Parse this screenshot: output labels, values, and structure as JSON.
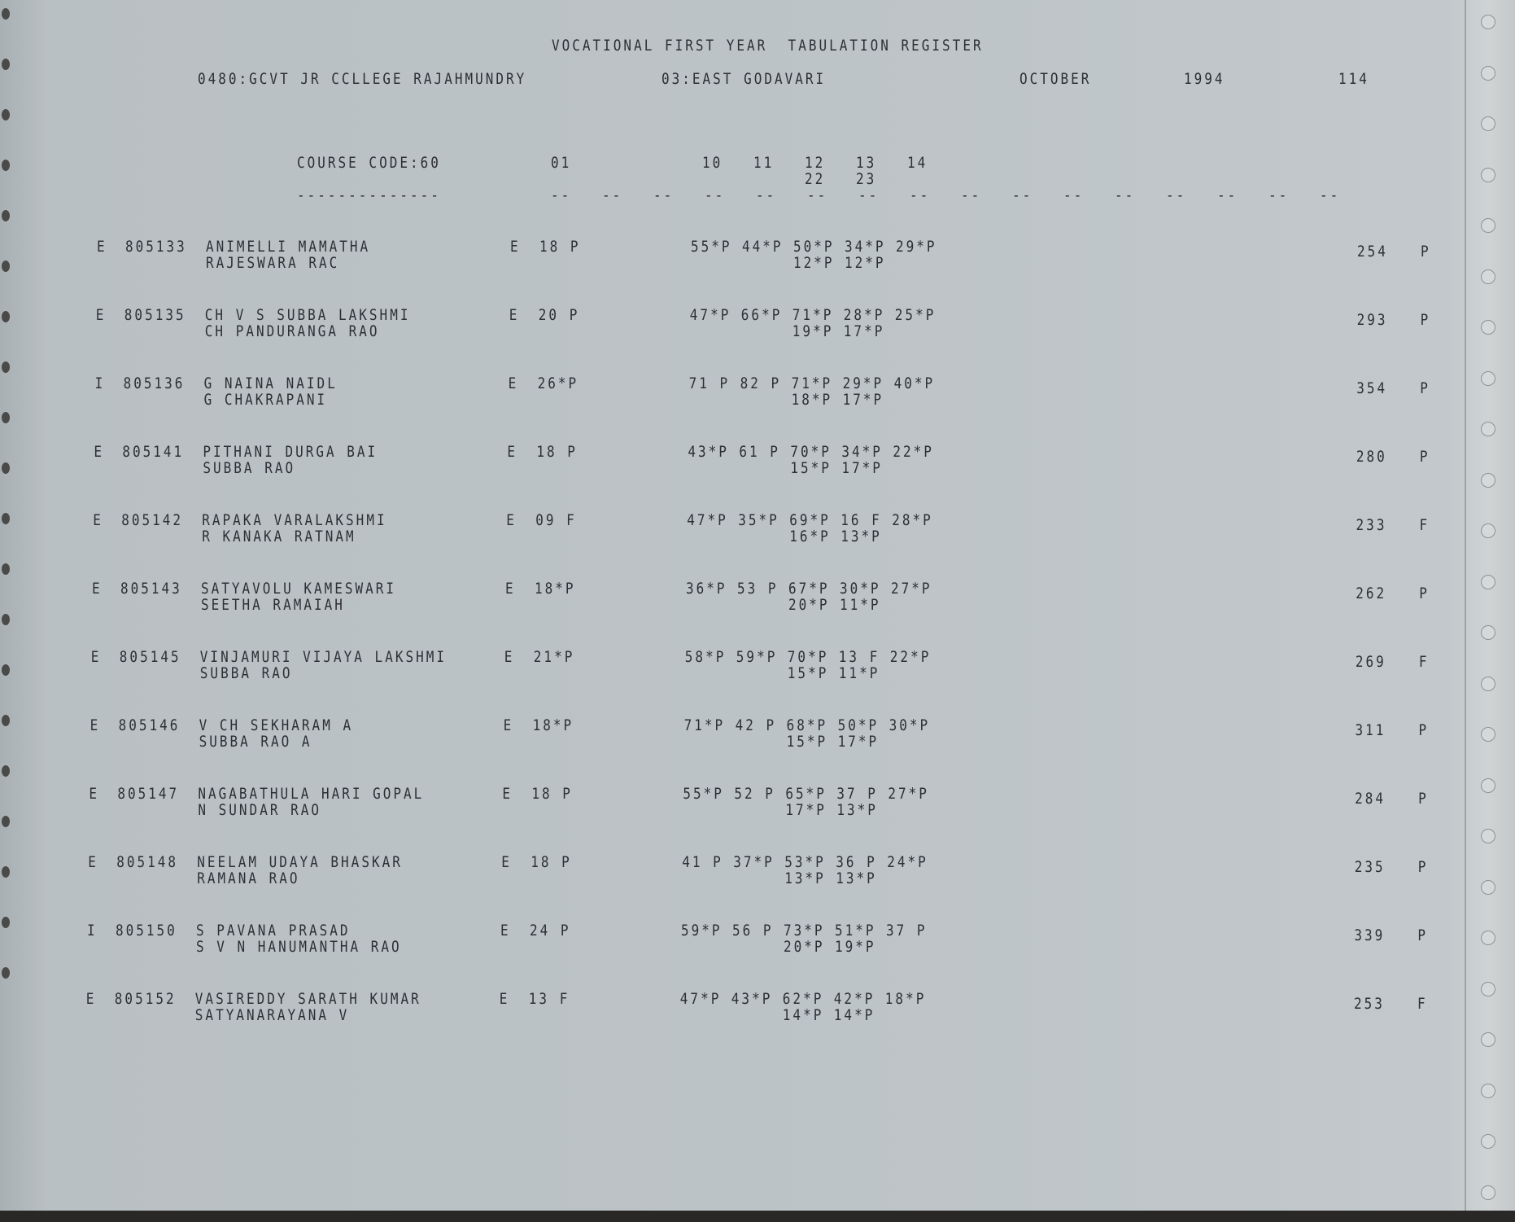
{
  "header": {
    "title": "VOCATIONAL FIRST YEAR  TABULATION REGISTER",
    "college": "0480:GCVT JR CCLLEGE RAJAHMUNDRY",
    "district": "03:EAST GODAVARI",
    "month": "OCTOBER",
    "year": "1994",
    "page": "114"
  },
  "columns": {
    "course_code": "COURSE CODE:60",
    "underline": "--------------",
    "c01": "01",
    "c10": "10",
    "c11": "11",
    "c12": "12",
    "c13": "13",
    "c14": "14",
    "c22": "22",
    "c23": "23",
    "dash": "--"
  },
  "rows": [
    {
      "cat": "E",
      "id": "805133",
      "name": "ANIMELLI MAMATHA",
      "parent": "RAJESWARA RAC",
      "lang": "E",
      "m01": "18 P",
      "m10": "55*P",
      "m11": "44*P",
      "m12": "50*P",
      "m13": "34*P",
      "m14": "29*P",
      "m22": "12*P",
      "m23": "12*P",
      "total": "254",
      "result": "P"
    },
    {
      "cat": "E",
      "id": "805135",
      "name": "CH V S SUBBA LAKSHMI",
      "parent": "CH PANDURANGA RAO",
      "lang": "E",
      "m01": "20 P",
      "m10": "47*P",
      "m11": "66*P",
      "m12": "71*P",
      "m13": "28*P",
      "m14": "25*P",
      "m22": "19*P",
      "m23": "17*P",
      "total": "293",
      "result": "P"
    },
    {
      "cat": "I",
      "id": "805136",
      "name": "G NAINA NAIDL",
      "parent": "G CHAKRAPANI",
      "lang": "E",
      "m01": "26*P",
      "m10": "71 P",
      "m11": "82 P",
      "m12": "71*P",
      "m13": "29*P",
      "m14": "40*P",
      "m22": "18*P",
      "m23": "17*P",
      "total": "354",
      "result": "P"
    },
    {
      "cat": "E",
      "id": "805141",
      "name": "PITHANI DURGA BAI",
      "parent": "SUBBA RAO",
      "lang": "E",
      "m01": "18 P",
      "m10": "43*P",
      "m11": "61 P",
      "m12": "70*P",
      "m13": "34*P",
      "m14": "22*P",
      "m22": "15*P",
      "m23": "17*P",
      "total": "280",
      "result": "P"
    },
    {
      "cat": "E",
      "id": "805142",
      "name": "RAPAKA VARALAKSHMI",
      "parent": "R KANAKA RATNAM",
      "lang": "E",
      "m01": "09 F",
      "m10": "47*P",
      "m11": "35*P",
      "m12": "69*P",
      "m13": "16 F",
      "m14": "28*P",
      "m22": "16*P",
      "m23": "13*P",
      "total": "233",
      "result": "F"
    },
    {
      "cat": "E",
      "id": "805143",
      "name": "SATYAVOLU KAMESWARI",
      "parent": "SEETHA RAMAIAH",
      "lang": "E",
      "m01": "18*P",
      "m10": "36*P",
      "m11": "53 P",
      "m12": "67*P",
      "m13": "30*P",
      "m14": "27*P",
      "m22": "20*P",
      "m23": "11*P",
      "total": "262",
      "result": "P"
    },
    {
      "cat": "E",
      "id": "805145",
      "name": "VINJAMURI VIJAYA LAKSHMI",
      "parent": "SUBBA RAO",
      "lang": "E",
      "m01": "21*P",
      "m10": "58*P",
      "m11": "59*P",
      "m12": "70*P",
      "m13": "13 F",
      "m14": "22*P",
      "m22": "15*P",
      "m23": "11*P",
      "total": "269",
      "result": "F"
    },
    {
      "cat": "E",
      "id": "805146",
      "name": "V CH SEKHARAM A",
      "parent": "SUBBA RAO A",
      "lang": "E",
      "m01": "18*P",
      "m10": "71*P",
      "m11": "42 P",
      "m12": "68*P",
      "m13": "50*P",
      "m14": "30*P",
      "m22": "15*P",
      "m23": "17*P",
      "total": "311",
      "result": "P"
    },
    {
      "cat": "E",
      "id": "805147",
      "name": "NAGABATHULA HARI GOPAL",
      "parent": "N SUNDAR RAO",
      "lang": "E",
      "m01": "18 P",
      "m10": "55*P",
      "m11": "52 P",
      "m12": "65*P",
      "m13": "37 P",
      "m14": "27*P",
      "m22": "17*P",
      "m23": "13*P",
      "total": "284",
      "result": "P"
    },
    {
      "cat": "E",
      "id": "805148",
      "name": "NEELAM UDAYA BHASKAR",
      "parent": "RAMANA RAO",
      "lang": "E",
      "m01": "18 P",
      "m10": "41 P",
      "m11": "37*P",
      "m12": "53*P",
      "m13": "36 P",
      "m14": "24*P",
      "m22": "13*P",
      "m23": "13*P",
      "total": "235",
      "result": "P"
    },
    {
      "cat": "I",
      "id": "805150",
      "name": "S PAVANA PRASAD",
      "parent": "S V N HANUMANTHA RAO",
      "lang": "E",
      "m01": "24 P",
      "m10": "59*P",
      "m11": "56 P",
      "m12": "73*P",
      "m13": "51*P",
      "m14": "37 P",
      "m22": "20*P",
      "m23": "19*P",
      "total": "339",
      "result": "P"
    },
    {
      "cat": "E",
      "id": "805152",
      "name": "VASIREDDY SARATH KUMAR",
      "parent": "SATYANARAYANA V",
      "lang": "E",
      "m01": "13 F",
      "m10": "47*P",
      "m11": "43*P",
      "m12": "62*P",
      "m13": "42*P",
      "m14": "18*P",
      "m22": "14*P",
      "m23": "14*P",
      "total": "253",
      "result": "F"
    }
  ]
}
